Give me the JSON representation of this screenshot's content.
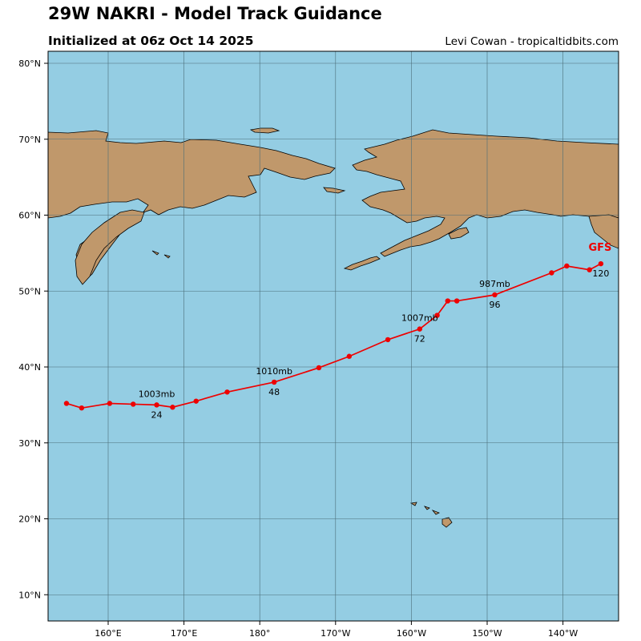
{
  "header": {
    "title": "29W NAKRI - Model Track Guidance",
    "subtitle": "Initialized at 06z Oct 14 2025",
    "credit": "Levi Cowan - tropicaltidbits.com"
  },
  "colors": {
    "ocean": "#94cde3",
    "land": "#c0986b",
    "track": "#ee0000",
    "grid": "#4a6d78"
  },
  "map": {
    "lat_labels": [
      {
        "lat": 80,
        "label": "80°N"
      },
      {
        "lat": 70,
        "label": "70°N"
      },
      {
        "lat": 60,
        "label": "60°N"
      },
      {
        "lat": 50,
        "label": "50°N"
      },
      {
        "lat": 40,
        "label": "40°N"
      },
      {
        "lat": 30,
        "label": "30°N"
      },
      {
        "lat": 20,
        "label": "20°N"
      },
      {
        "lat": 10,
        "label": "10°N"
      }
    ],
    "lon_labels": [
      {
        "lon": 160,
        "label": "160°E"
      },
      {
        "lon": 170,
        "label": "170°E"
      },
      {
        "lon": 180,
        "label": "180°"
      },
      {
        "lon": 190,
        "label": "170°W"
      },
      {
        "lon": 200,
        "label": "160°W"
      },
      {
        "lon": 210,
        "label": "150°W"
      },
      {
        "lon": 220,
        "label": "140°W"
      }
    ],
    "model_label": "GFS",
    "track": [
      {
        "lon": 154.5,
        "lat": 35.2
      },
      {
        "lon": 156.5,
        "lat": 34.6
      },
      {
        "lon": 160.2,
        "lat": 35.2
      },
      {
        "lon": 163.3,
        "lat": 35.1
      },
      {
        "lon": 166.4,
        "lat": 35.0
      },
      {
        "lon": 168.5,
        "lat": 34.7
      },
      {
        "lon": 171.6,
        "lat": 35.5
      },
      {
        "lon": 175.7,
        "lat": 36.7
      },
      {
        "lon": 181.9,
        "lat": 38.0
      },
      {
        "lon": 187.8,
        "lat": 39.9
      },
      {
        "lon": 191.8,
        "lat": 41.4
      },
      {
        "lon": 196.9,
        "lat": 43.6
      },
      {
        "lon": 201.1,
        "lat": 45.0
      },
      {
        "lon": 203.4,
        "lat": 46.8
      },
      {
        "lon": 204.8,
        "lat": 48.7
      },
      {
        "lon": 206.0,
        "lat": 48.7
      },
      {
        "lon": 211.0,
        "lat": 49.5
      },
      {
        "lon": 218.5,
        "lat": 52.4
      },
      {
        "lon": 220.5,
        "lat": 53.3
      },
      {
        "lon": 223.5,
        "lat": 52.8
      },
      {
        "lon": 225.0,
        "lat": 53.6
      }
    ],
    "annotations": [
      {
        "lon": 166.4,
        "lat": 35.0,
        "pressure": "1003mb",
        "hour": "24"
      },
      {
        "lon": 181.9,
        "lat": 38.0,
        "pressure": "1010mb",
        "hour": "48"
      },
      {
        "lon": 201.1,
        "lat": 45.0,
        "pressure": "1007mb",
        "hour": "72"
      },
      {
        "lon": 211.0,
        "lat": 49.5,
        "pressure": "987mb",
        "hour": "96"
      },
      {
        "lon": 225.0,
        "lat": 53.6,
        "pressure": "",
        "hour": "120"
      }
    ]
  }
}
